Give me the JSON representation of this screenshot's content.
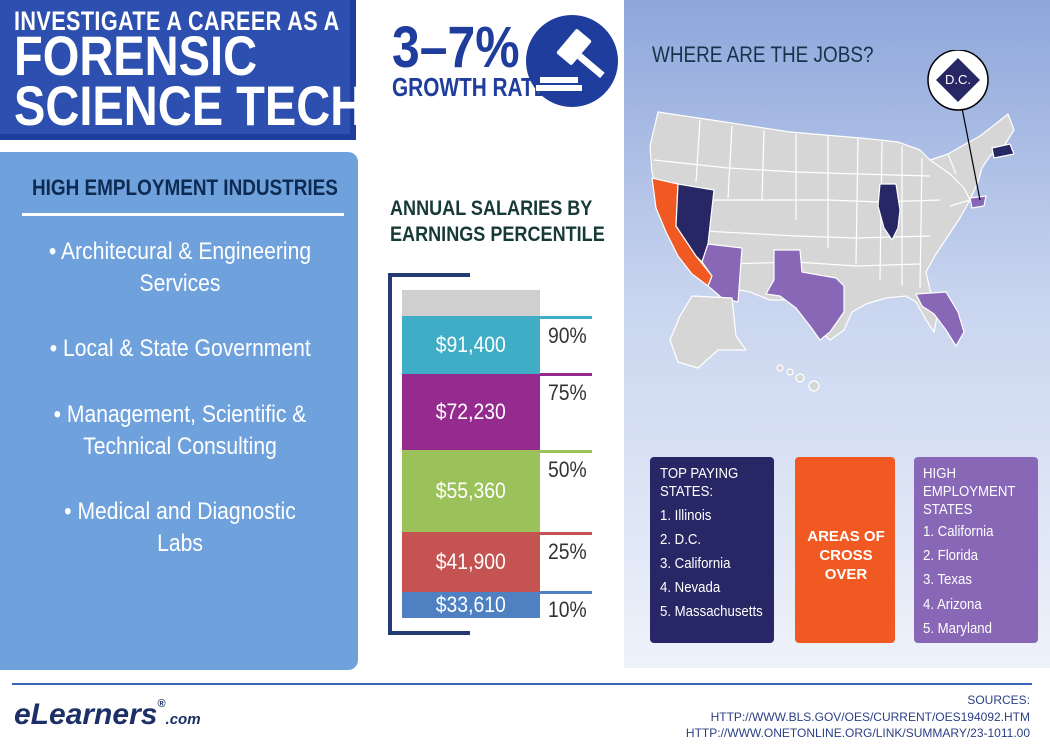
{
  "header": {
    "line1": "INVESTIGATE A CAREER AS A",
    "line2": "FORENSIC",
    "line3": "SCIENCE TECH"
  },
  "growth": {
    "value": "3–7%",
    "label": "GROWTH RATE",
    "icon": "gavel-icon"
  },
  "industries": {
    "title": "HIGH EMPLOYMENT INDUSTRIES",
    "items": [
      "• Architecural & Engineering Services",
      "• Local & State Government",
      "• Management, Scientific & Technical Consulting",
      "• Medical and Diagnostic Labs"
    ]
  },
  "salaries": {
    "title_line1": "ANNUAL SALARIES BY",
    "title_line2": "EARNINGS PERCENTILE",
    "bars": [
      {
        "value": "$91,400",
        "percentile": "90%",
        "color": "#3fadc5"
      },
      {
        "value": "$72,230",
        "percentile": "75%",
        "color": "#952a8f"
      },
      {
        "value": "$55,360",
        "percentile": "50%",
        "color": "#9bc15a"
      },
      {
        "value": "$41,900",
        "percentile": "25%",
        "color": "#c55352"
      },
      {
        "value": "$33,610",
        "percentile": "10%",
        "color": "#4f80c2"
      }
    ]
  },
  "map": {
    "title": "WHERE ARE THE JOBS?",
    "dc_label": "D.C."
  },
  "top_paying": {
    "title": [
      "TOP PAYING",
      "STATES:"
    ],
    "items": [
      "1. Illinois",
      "2. D.C.",
      "3. California",
      "4. Nevada",
      "5. Massachusetts"
    ],
    "color": "#282766"
  },
  "crossover": {
    "line1": "AREAS OF",
    "line2": "CROSS OVER",
    "color": "#f05a22"
  },
  "high_employment": {
    "title": [
      "HIGH",
      "EMPLOYMENT",
      "STATES"
    ],
    "items": [
      "1. California",
      "2. Florida",
      "3. Texas",
      "4. Arizona",
      "5. Maryland"
    ],
    "color": "#8767b6"
  },
  "footer": {
    "logo_main": "eLearners",
    "logo_reg": "®",
    "logo_com": ".com",
    "sources_label": "SOURCES:",
    "source1": "HTTP://WWW.BLS.GOV/OES/CURRENT/OES194092.HTM",
    "source2": "HTTP://WWW.ONETONLINE.ORG/LINK/SUMMARY/23-1011.00"
  }
}
